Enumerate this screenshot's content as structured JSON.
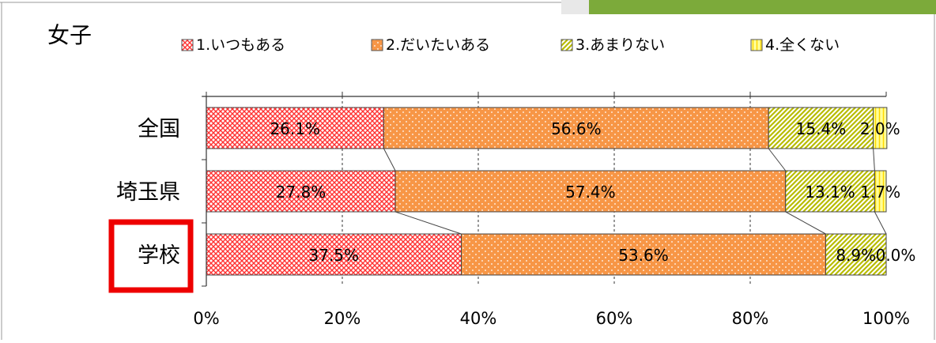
{
  "chart_data": {
    "type": "bar",
    "stacked": true,
    "orientation": "horizontal",
    "title": "女子",
    "categories": [
      "全国",
      "埼玉県",
      "学校"
    ],
    "series": [
      {
        "name": "1.いつもある",
        "values": [
          26.1,
          27.8,
          37.5
        ],
        "labels": [
          "26.1%",
          "27.8%",
          "37.5%"
        ]
      },
      {
        "name": "2.だいたいある",
        "values": [
          56.6,
          57.4,
          53.6
        ],
        "labels": [
          "56.6%",
          "57.4%",
          "53.6%"
        ]
      },
      {
        "name": "3.あまりない",
        "values": [
          15.4,
          13.1,
          8.9
        ],
        "labels": [
          "15.4%",
          "13.1%",
          "8.9%"
        ]
      },
      {
        "name": "4.全くない",
        "values": [
          2.0,
          1.7,
          0.0
        ],
        "labels": [
          "2.0%",
          "1.7%",
          "0.0%"
        ]
      }
    ],
    "xlim": [
      0,
      100
    ],
    "xticks": [
      "0%",
      "20%",
      "40%",
      "60%",
      "80%",
      "100%"
    ],
    "grid": true,
    "legend_position": "top",
    "highlighted_category": "学校",
    "colors": {
      "series": [
        "#ff5050",
        "#f79646",
        "#c4c800",
        "#ffff66"
      ],
      "highlight": "#ee0000",
      "axis": "#404040",
      "frame": "#999999",
      "accent_green": "#7caa3a"
    }
  }
}
